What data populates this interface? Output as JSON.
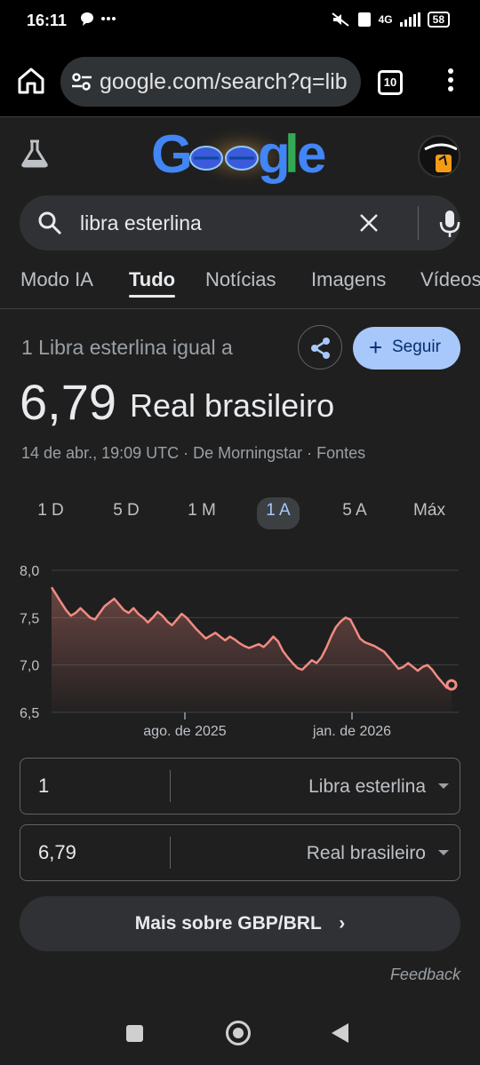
{
  "status_bar": {
    "time": "16:11",
    "battery": "58",
    "network": "4G"
  },
  "browser": {
    "url": "google.com/search?q=lib",
    "tab_count": "10"
  },
  "search": {
    "query": "libra esterlina"
  },
  "tabs": [
    "Modo IA",
    "Tudo",
    "Notícias",
    "Imagens",
    "Vídeos"
  ],
  "active_tab": "Tudo",
  "result": {
    "label": "1 Libra esterlina igual a",
    "follow_label": "Seguir",
    "value": "6,79",
    "currency": "Real brasileiro",
    "meta": "14 de abr., 19:09 UTC · De Morningstar · Fontes"
  },
  "ranges": [
    "1 D",
    "5 D",
    "1 M",
    "1 A",
    "5 A",
    "Máx"
  ],
  "active_range": "1 A",
  "chart_data": {
    "type": "area",
    "y_ticks": [
      "8,0",
      "7,5",
      "7,0",
      "6,5"
    ],
    "ylim": [
      6.5,
      8.0
    ],
    "x_ticks": [
      "ago. de 2025",
      "jan. de 2026"
    ],
    "series": [
      {
        "values": [
          7.82,
          7.74,
          7.66,
          7.58,
          7.52,
          7.55,
          7.6,
          7.55,
          7.5,
          7.48,
          7.55,
          7.62,
          7.66,
          7.7,
          7.64,
          7.58,
          7.55,
          7.6,
          7.54,
          7.5,
          7.45,
          7.5,
          7.56,
          7.52,
          7.46,
          7.42,
          7.48,
          7.54,
          7.5,
          7.44,
          7.38,
          7.33,
          7.28,
          7.31,
          7.34,
          7.3,
          7.26,
          7.3,
          7.27,
          7.23,
          7.2,
          7.18,
          7.2,
          7.22,
          7.19,
          7.24,
          7.3,
          7.25,
          7.15,
          7.08,
          7.02,
          6.97,
          6.95,
          7.0,
          7.05,
          7.02,
          7.08,
          7.18,
          7.3,
          7.4,
          7.46,
          7.5,
          7.48,
          7.38,
          7.28,
          7.24,
          7.22,
          7.2,
          7.17,
          7.14,
          7.08,
          7.02,
          6.96,
          6.98,
          7.02,
          6.98,
          6.94,
          6.98,
          7.0,
          6.95,
          6.88,
          6.82,
          6.76,
          6.79
        ],
        "color": "#f28b82"
      }
    ]
  },
  "converter": {
    "from": {
      "amount": "1",
      "currency": "Libra esterlina"
    },
    "to": {
      "amount": "6,79",
      "currency": "Real brasileiro"
    }
  },
  "more_link": "Mais sobre GBP/BRL",
  "feedback": "Feedback",
  "colors": {
    "accent": "#a8c7fa",
    "chart_line": "#f28b82",
    "background": "#1f1f1f"
  }
}
